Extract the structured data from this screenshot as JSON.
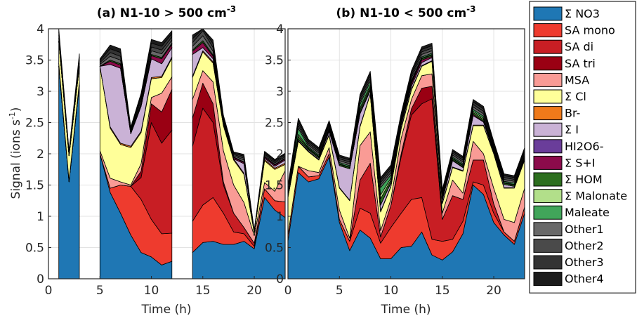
{
  "figure": {
    "ylabel": "Signal (ions s-1)",
    "ylabel_main": "Signal (ions s",
    "ylabel_sup": "-1",
    "ylabel_close": ")"
  },
  "legend": {
    "items": [
      {
        "label": "Σ NO3",
        "color": "#1f77b4"
      },
      {
        "label": "SA mono",
        "color": "#ee3b2e"
      },
      {
        "label": "SA di",
        "color": "#c81e24"
      },
      {
        "label": "SA tri",
        "color": "#9a0013"
      },
      {
        "label": "MSA",
        "color": "#f99b95"
      },
      {
        "label": "Σ Cl",
        "color": "#ffff99"
      },
      {
        "label": "Br-",
        "color": "#ef7a1a"
      },
      {
        "label": "Σ I",
        "color": "#cab2d6"
      },
      {
        "label": "HI2O6-",
        "color": "#6a3d9a"
      },
      {
        "label": "Σ S+I",
        "color": "#8c0b4b"
      },
      {
        "label": "Σ HOM",
        "color": "#2c6e1e"
      },
      {
        "label": "Σ Malonate",
        "color": "#b2df8a"
      },
      {
        "label": "Maleate",
        "color": "#41a55a"
      },
      {
        "label": "Other1",
        "color": "#696969"
      },
      {
        "label": "Other2",
        "color": "#4a4a4a"
      },
      {
        "label": "Other3",
        "color": "#333333"
      },
      {
        "label": "Other4",
        "color": "#1c1c1c"
      }
    ]
  },
  "chart_data": [
    {
      "type": "area",
      "stacked": true,
      "title_main": "(a) N1-10 > 500 cm",
      "title_sup": "-3",
      "xlabel": "Time (h)",
      "ylabel": "Signal (ions s-1)",
      "xlim": [
        0,
        23
      ],
      "ylim": [
        0,
        4
      ],
      "xticks": [
        0,
        5,
        10,
        15,
        20
      ],
      "yticks": [
        0,
        0.5,
        1,
        1.5,
        2,
        2.5,
        3,
        3.5,
        4
      ],
      "grid": true,
      "x": [
        1,
        2,
        3,
        5,
        6,
        7,
        8,
        9,
        10,
        11,
        12,
        14,
        15,
        16,
        17,
        18,
        19,
        20,
        21,
        22,
        23
      ],
      "gaps_after_index": [
        2,
        10
      ],
      "series": [
        {
          "name": "Σ NO3",
          "values": [
            3.4,
            1.55,
            3.1,
            2.0,
            1.38,
            1.05,
            0.7,
            0.42,
            0.35,
            0.22,
            0.28,
            0.42,
            0.58,
            0.6,
            0.55,
            0.55,
            0.6,
            0.48,
            1.3,
            1.1,
            0.98
          ]
        },
        {
          "name": "SA mono",
          "values": [
            0,
            0,
            0,
            0,
            0.07,
            0.45,
            0.78,
            0.85,
            0.6,
            0.5,
            0.45,
            0.5,
            0.6,
            0.7,
            0.5,
            0.2,
            0.12,
            0.04,
            0.14,
            0.15,
            0.25
          ]
        },
        {
          "name": "SA di",
          "values": [
            0,
            0,
            0,
            0,
            0,
            0,
            0,
            0.35,
            1.55,
            1.45,
            1.65,
            1.2,
            1.55,
            1.2,
            0.45,
            0.3,
            0.1,
            0.05,
            0,
            0,
            0
          ]
        },
        {
          "name": "SA tri",
          "values": [
            0,
            0,
            0,
            0,
            0,
            0,
            0,
            0.1,
            0.3,
            0.5,
            0.65,
            0.45,
            0.4,
            0.3,
            0.05,
            0,
            0,
            0,
            0,
            0,
            0
          ]
        },
        {
          "name": "MSA",
          "values": [
            0.05,
            0.02,
            0.05,
            0.05,
            0.16,
            0.05,
            0.02,
            0.12,
            0.1,
            0.3,
            0.2,
            0.3,
            0.2,
            0.35,
            0.5,
            0.45,
            0.4,
            0.12,
            0.1,
            0.15,
            0.5
          ]
        },
        {
          "name": "Σ Cl",
          "values": [
            0.35,
            0.4,
            0.25,
            1.35,
            0.8,
            0.6,
            0.6,
            0.5,
            0.3,
            0.25,
            0.3,
            0.35,
            0.3,
            0.3,
            0.4,
            0.4,
            0.45,
            0.05,
            0.35,
            0.35,
            0.1
          ]
        },
        {
          "name": "Br-",
          "values": [
            0,
            0,
            0,
            0,
            0.02,
            0.02,
            0.02,
            0.02,
            0.02,
            0.02,
            0.02,
            0.02,
            0.02,
            0.02,
            0.02,
            0.02,
            0.02,
            0,
            0.02,
            0.02,
            0.02
          ]
        },
        {
          "name": "Σ I",
          "values": [
            0,
            0,
            0,
            0,
            1.0,
            1.2,
            0.2,
            0.4,
            0.3,
            0.2,
            0.15,
            0.35,
            0.05,
            0.05,
            0,
            0,
            0.15,
            0,
            0.02,
            0.03,
            0.05
          ]
        },
        {
          "name": "HI2O6-",
          "values": [
            0,
            0,
            0,
            0,
            0,
            0,
            0,
            0,
            0,
            0,
            0,
            0,
            0,
            0,
            0,
            0,
            0,
            0,
            0,
            0,
            0
          ]
        },
        {
          "name": "Σ S+I",
          "values": [
            0,
            0,
            0,
            0,
            0.05,
            0.05,
            0.02,
            0.03,
            0.05,
            0.08,
            0.05,
            0.05,
            0.08,
            0.04,
            0.02,
            0.02,
            0.02,
            0,
            0.02,
            0.02,
            0.02
          ]
        },
        {
          "name": "Σ HOM",
          "values": [
            0,
            0,
            0,
            0,
            0.02,
            0.02,
            0.01,
            0.02,
            0.02,
            0.02,
            0.02,
            0.02,
            0.03,
            0.02,
            0.01,
            0.01,
            0.01,
            0,
            0.01,
            0.01,
            0.01
          ]
        },
        {
          "name": "Σ Malonate",
          "values": [
            0,
            0,
            0,
            0,
            0,
            0,
            0,
            0,
            0,
            0,
            0,
            0,
            0,
            0,
            0,
            0,
            0,
            0,
            0,
            0,
            0
          ]
        },
        {
          "name": "Maleate",
          "values": [
            0,
            0,
            0,
            0,
            0,
            0,
            0,
            0,
            0,
            0,
            0,
            0,
            0,
            0,
            0,
            0,
            0,
            0,
            0,
            0,
            0
          ]
        },
        {
          "name": "Other1",
          "values": [
            0.05,
            0.02,
            0.05,
            0.03,
            0.06,
            0.06,
            0.02,
            0.04,
            0.06,
            0.06,
            0.05,
            0.06,
            0.08,
            0.06,
            0.03,
            0.02,
            0.03,
            0.01,
            0.02,
            0.02,
            0.02
          ]
        },
        {
          "name": "Other2",
          "values": [
            0.05,
            0.02,
            0.05,
            0.03,
            0.06,
            0.06,
            0.02,
            0.04,
            0.06,
            0.06,
            0.05,
            0.06,
            0.08,
            0.06,
            0.03,
            0.02,
            0.03,
            0.01,
            0.02,
            0.02,
            0.02
          ]
        },
        {
          "name": "Other3",
          "values": [
            0.05,
            0.02,
            0.05,
            0.03,
            0.06,
            0.06,
            0.02,
            0.04,
            0.06,
            0.06,
            0.05,
            0.06,
            0.08,
            0.06,
            0.03,
            0.02,
            0.03,
            0.01,
            0.02,
            0.02,
            0.02
          ]
        },
        {
          "name": "Other4",
          "values": [
            0.05,
            0.02,
            0.05,
            0.03,
            0.06,
            0.06,
            0.02,
            0.04,
            0.06,
            0.06,
            0.05,
            0.06,
            0.08,
            0.06,
            0.03,
            0.02,
            0.03,
            0.01,
            0.02,
            0.02,
            0.02
          ]
        }
      ]
    },
    {
      "type": "area",
      "stacked": true,
      "title_main": "(b) N1-10 < 500 cm",
      "title_sup": "-3",
      "xlabel": "Time (h)",
      "ylabel": "",
      "xlim": [
        0,
        23
      ],
      "ylim": [
        0,
        4
      ],
      "xticks": [
        0,
        5,
        10,
        15,
        20
      ],
      "yticks": [
        0,
        0.5,
        1,
        1.5,
        2,
        2.5,
        3,
        3.5,
        4
      ],
      "grid": true,
      "x": [
        0,
        1,
        2,
        3,
        4,
        5,
        6,
        7,
        8,
        9,
        10,
        11,
        12,
        13,
        14,
        15,
        16,
        17,
        18,
        19,
        20,
        21,
        22,
        23
      ],
      "gaps_after_index": [],
      "series": [
        {
          "name": "Σ NO3",
          "values": [
            0.6,
            1.7,
            1.55,
            1.6,
            1.95,
            0.9,
            0.45,
            0.78,
            0.65,
            0.32,
            0.32,
            0.5,
            0.52,
            0.75,
            0.38,
            0.3,
            0.43,
            0.72,
            1.5,
            1.35,
            0.9,
            0.7,
            0.55,
            1.05
          ]
        },
        {
          "name": "SA mono",
          "values": [
            0.1,
            0.1,
            0.08,
            0.05,
            0.05,
            0.05,
            0.15,
            0.35,
            0.4,
            0.25,
            0.5,
            0.55,
            0.75,
            0.55,
            0.25,
            0.3,
            0.2,
            0.2,
            0.05,
            0.15,
            0.15,
            0.05,
            0.05,
            0.1
          ]
        },
        {
          "name": "SA di",
          "values": [
            0,
            0,
            0,
            0,
            0,
            0,
            0,
            0.45,
            0.8,
            0.1,
            0.35,
            0.9,
            1.35,
            1.5,
            2.25,
            0.35,
            0.7,
            0.35,
            0.35,
            0.4,
            0.15,
            0,
            0,
            0
          ]
        },
        {
          "name": "SA tri",
          "values": [
            0,
            0,
            0,
            0,
            0,
            0,
            0,
            0,
            0,
            0,
            0,
            0.05,
            0.1,
            0.25,
            0.2,
            0,
            0,
            0,
            0,
            0,
            0,
            0,
            0,
            0
          ]
        },
        {
          "name": "MSA",
          "values": [
            0,
            0,
            0.1,
            0.05,
            0.1,
            0.15,
            0.05,
            0.55,
            0.5,
            0.1,
            0.1,
            0.25,
            0.15,
            0.2,
            0.2,
            0.1,
            0.25,
            0.1,
            0.3,
            0.1,
            0.25,
            0.2,
            0.3,
            0.3
          ]
        },
        {
          "name": "Σ Cl",
          "values": [
            0.6,
            0.4,
            0.3,
            0.2,
            0.2,
            0.35,
            0.6,
            0.3,
            0.6,
            0.3,
            0.2,
            0.15,
            0.15,
            0.15,
            0.2,
            0.15,
            0.2,
            0.35,
            0.25,
            0.45,
            0.55,
            0.5,
            0.55,
            0.45
          ]
        },
        {
          "name": "Br-",
          "values": [
            0.01,
            0.01,
            0.01,
            0.01,
            0.01,
            0.01,
            0.01,
            0.01,
            0.01,
            0.01,
            0.01,
            0.01,
            0.01,
            0.01,
            0.01,
            0.01,
            0.01,
            0.01,
            0.01,
            0.01,
            0.01,
            0.01,
            0.01,
            0.01
          ]
        },
        {
          "name": "Σ I",
          "values": [
            0.02,
            0.02,
            0.02,
            0.02,
            0.05,
            0.35,
            0.5,
            0.2,
            0.05,
            0.1,
            0.05,
            0.05,
            0.05,
            0.05,
            0.05,
            0.05,
            0.1,
            0.05,
            0.15,
            0.05,
            0.02,
            0.05,
            0.02,
            0.02
          ]
        },
        {
          "name": "HI2O6-",
          "values": [
            0,
            0,
            0,
            0,
            0,
            0,
            0,
            0,
            0,
            0,
            0,
            0,
            0,
            0,
            0,
            0,
            0,
            0,
            0,
            0,
            0,
            0,
            0,
            0
          ]
        },
        {
          "name": "Σ S+I",
          "values": [
            0,
            0,
            0,
            0,
            0,
            0,
            0,
            0.02,
            0.02,
            0,
            0.01,
            0.02,
            0.04,
            0.04,
            0.02,
            0,
            0.01,
            0.01,
            0.02,
            0.01,
            0,
            0,
            0,
            0
          ]
        },
        {
          "name": "Σ HOM",
          "values": [
            0.02,
            0.05,
            0.02,
            0.02,
            0.02,
            0.02,
            0.02,
            0.04,
            0.04,
            0.1,
            0.04,
            0.02,
            0.02,
            0.02,
            0.02,
            0.02,
            0.02,
            0.02,
            0.03,
            0.03,
            0.02,
            0.02,
            0.02,
            0.02
          ]
        },
        {
          "name": "Σ Malonate",
          "values": [
            0.01,
            0.03,
            0.01,
            0.01,
            0.01,
            0.01,
            0.01,
            0.03,
            0.03,
            0.06,
            0.03,
            0.01,
            0.01,
            0.01,
            0.01,
            0.01,
            0.01,
            0.01,
            0.02,
            0.02,
            0.01,
            0.01,
            0.01,
            0.01
          ]
        },
        {
          "name": "Maleate",
          "values": [
            0.02,
            0.1,
            0.02,
            0.02,
            0.02,
            0.02,
            0.02,
            0.06,
            0.06,
            0.12,
            0.05,
            0.02,
            0.02,
            0.02,
            0.02,
            0.02,
            0.02,
            0.02,
            0.03,
            0.03,
            0.02,
            0.02,
            0.02,
            0.02
          ]
        },
        {
          "name": "Other1",
          "values": [
            0.03,
            0.04,
            0.03,
            0.03,
            0.03,
            0.03,
            0.03,
            0.04,
            0.04,
            0.04,
            0.04,
            0.03,
            0.04,
            0.04,
            0.04,
            0.03,
            0.03,
            0.03,
            0.04,
            0.04,
            0.03,
            0.03,
            0.03,
            0.03
          ]
        },
        {
          "name": "Other2",
          "values": [
            0.03,
            0.04,
            0.03,
            0.03,
            0.03,
            0.03,
            0.03,
            0.04,
            0.04,
            0.04,
            0.04,
            0.03,
            0.04,
            0.04,
            0.04,
            0.03,
            0.03,
            0.03,
            0.04,
            0.04,
            0.03,
            0.03,
            0.03,
            0.03
          ]
        },
        {
          "name": "Other3",
          "values": [
            0.03,
            0.04,
            0.03,
            0.03,
            0.03,
            0.03,
            0.03,
            0.04,
            0.04,
            0.04,
            0.04,
            0.03,
            0.04,
            0.04,
            0.04,
            0.03,
            0.03,
            0.03,
            0.04,
            0.04,
            0.03,
            0.03,
            0.03,
            0.03
          ]
        },
        {
          "name": "Other4",
          "values": [
            0.03,
            0.04,
            0.03,
            0.03,
            0.03,
            0.03,
            0.03,
            0.04,
            0.04,
            0.04,
            0.04,
            0.03,
            0.04,
            0.04,
            0.04,
            0.03,
            0.03,
            0.03,
            0.04,
            0.04,
            0.03,
            0.03,
            0.03,
            0.03
          ]
        }
      ]
    }
  ]
}
